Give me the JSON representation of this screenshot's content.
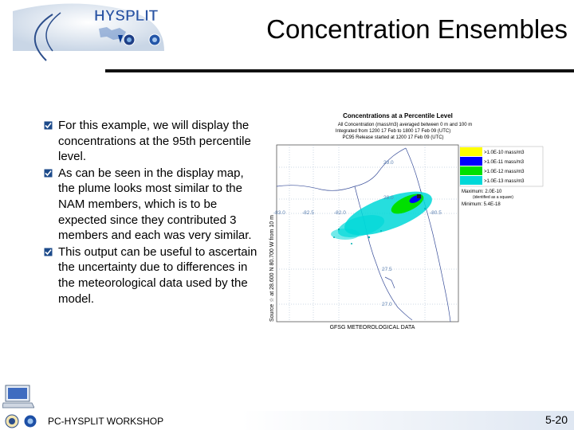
{
  "header": {
    "title": "Concentration Ensembles",
    "logo_text": "HYSPLIT"
  },
  "bullets": [
    "For this example, we will display the concentrations at the 95th percentile level.",
    "As can be seen in the display map, the plume looks most similar to the NAM members, which is to be expected since they contributed 3 members and each was very similar.",
    "This output can be useful to ascertain the uncertainty due to differences in the meteorological data used by the model."
  ],
  "figure": {
    "title": "Concentrations at a Percentile Level",
    "subtitle_1": "All Concentration (mass/m3) averaged between 0 m and 100 m",
    "subtitle_2": "Integrated from 1200 17 Feb to 1800 17 Feb 09 (UTC)",
    "subtitle_3": "PC95 Release started at 1200 17 Feb 09 (UTC)",
    "y_label": "Source ☆ at 28.600 N 80.700 W  from 10 m",
    "x_caption": "GFSG METEOROLOGICAL DATA",
    "lat_labels": [
      "29.0",
      "28.0",
      "27.5",
      "27.0"
    ],
    "lon_labels": [
      "-83.0",
      "-82.5",
      "-82.0",
      "-80.5"
    ],
    "legend": [
      {
        "label": ">1.0E-10 mass/m3",
        "color": "#ffff00"
      },
      {
        "label": ">1.0E-11 mass/m3",
        "color": "#0000ff"
      },
      {
        "label": ">1.0E-12 mass/m3",
        "color": "#00e000"
      },
      {
        "label": ">1.0E-13 mass/m3",
        "color": "#00d8d8"
      }
    ],
    "maximum_label": "Maximum: 2.0E-10",
    "maximum_note": "(identified as a square)",
    "minimum_label": "Minimum: 5.4E-18"
  },
  "footer": {
    "workshop": "PC-HYSPLIT WORKSHOP",
    "page": "5-20"
  }
}
